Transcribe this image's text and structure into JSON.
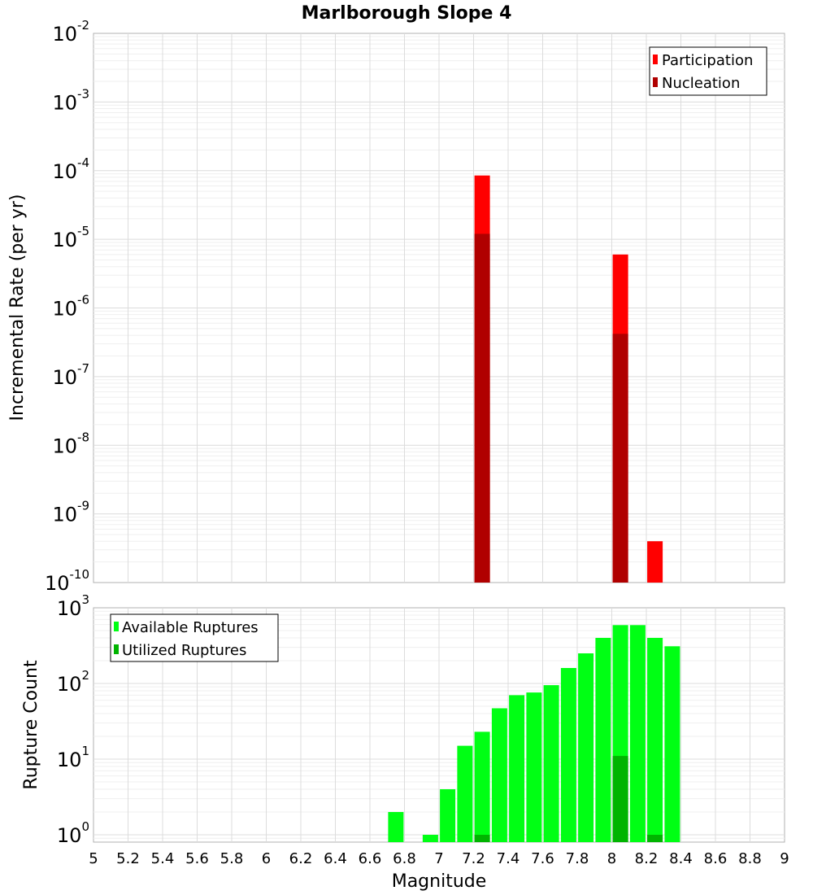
{
  "chart_data": [
    {
      "type": "bar",
      "title": "Marlborough Slope 4",
      "ylabel": "Incremental Rate (per yr)",
      "yscale": "log",
      "ylim": [
        1e-10,
        0.01
      ],
      "ytick_base": "10",
      "ytick_exponents": [
        "-10",
        "-9",
        "-8",
        "-7",
        "-6",
        "-5",
        "-4",
        "-3",
        "-2"
      ],
      "xlim": [
        5,
        9
      ],
      "grid": true,
      "legend_position": "top-right",
      "series": [
        {
          "name": "Participation",
          "color": "#ff0000",
          "x": [
            7.25,
            8.05,
            8.25
          ],
          "values": [
            8.5e-05,
            6e-06,
            4e-10
          ]
        },
        {
          "name": "Nucleation",
          "color": "#b00000",
          "x": [
            7.25,
            8.05
          ],
          "values": [
            1.2e-05,
            4.2e-07
          ]
        }
      ]
    },
    {
      "type": "bar",
      "ylabel": "Rupture Count",
      "xlabel": "Magnitude",
      "yscale": "log",
      "ylim": [
        0.8,
        1000
      ],
      "ytick_base": "10",
      "ytick_exponents": [
        "0",
        "1",
        "2",
        "3"
      ],
      "xlim": [
        5,
        9
      ],
      "xticks": [
        "5",
        "5.2",
        "5.4",
        "5.6",
        "5.8",
        "6",
        "6.2",
        "6.4",
        "6.6",
        "6.8",
        "7",
        "7.2",
        "7.4",
        "7.6",
        "7.8",
        "8",
        "8.2",
        "8.4",
        "8.6",
        "8.8",
        "9"
      ],
      "grid": true,
      "legend_position": "top-left",
      "series": [
        {
          "name": "Available Ruptures",
          "color": "#00ff14",
          "x": [
            6.75,
            6.95,
            7.05,
            7.15,
            7.25,
            7.35,
            7.45,
            7.55,
            7.65,
            7.75,
            7.85,
            7.95,
            8.05,
            8.15,
            8.25,
            8.35
          ],
          "values": [
            2,
            1,
            4,
            15,
            23,
            47,
            70,
            76,
            95,
            160,
            250,
            400,
            590,
            590,
            400,
            310
          ]
        },
        {
          "name": "Utilized Ruptures",
          "color": "#00b400",
          "x": [
            7.25,
            8.05,
            8.25
          ],
          "values": [
            1,
            11,
            1
          ]
        }
      ]
    }
  ]
}
